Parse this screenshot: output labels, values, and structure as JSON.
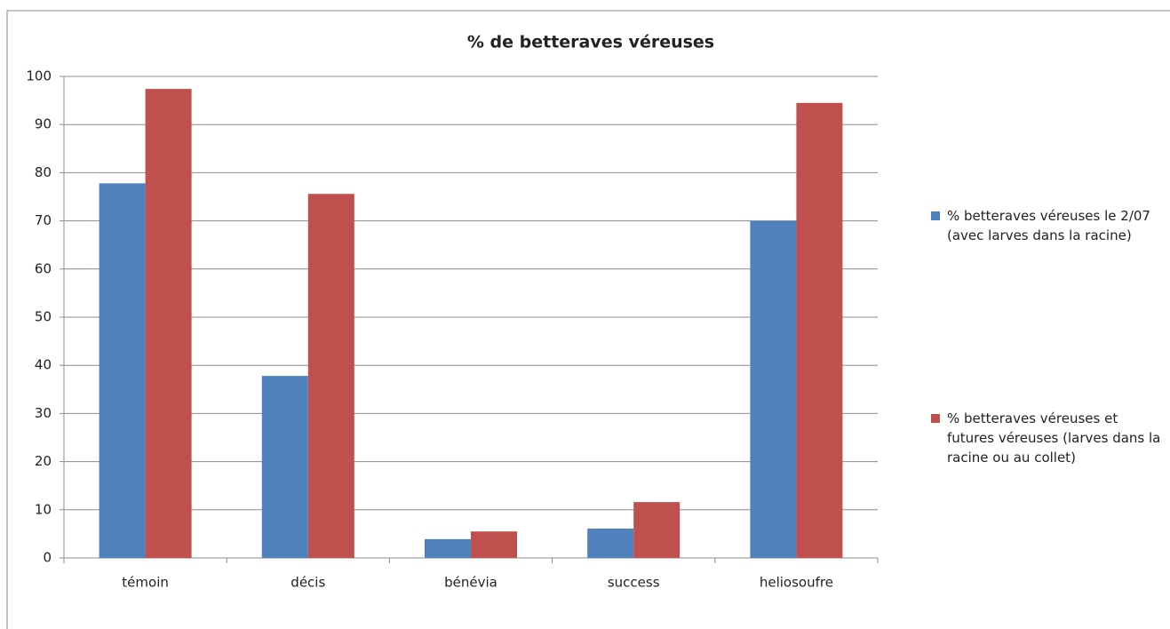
{
  "chart_data": {
    "type": "bar",
    "title": "% de betteraves véreuses",
    "categories": [
      "témoin",
      "décis",
      "bénévia",
      "success",
      "heliosoufre"
    ],
    "series": [
      {
        "name": "% betteraves véreuses le 2/07 (avec larves dans la racine)",
        "color": "#4f81bd",
        "values": [
          77.8,
          37.8,
          3.9,
          6.1,
          70
        ]
      },
      {
        "name": "% betteraves véreuses et futures véreuses (larves dans la racine ou au collet)",
        "color": "#c0504d",
        "values": [
          97.4,
          75.6,
          5.5,
          11.6,
          94.5
        ]
      }
    ],
    "ylim": [
      0,
      100
    ],
    "yticks": [
      0,
      10,
      20,
      30,
      40,
      50,
      60,
      70,
      80,
      90,
      100
    ],
    "grid": true,
    "legend": "right"
  }
}
